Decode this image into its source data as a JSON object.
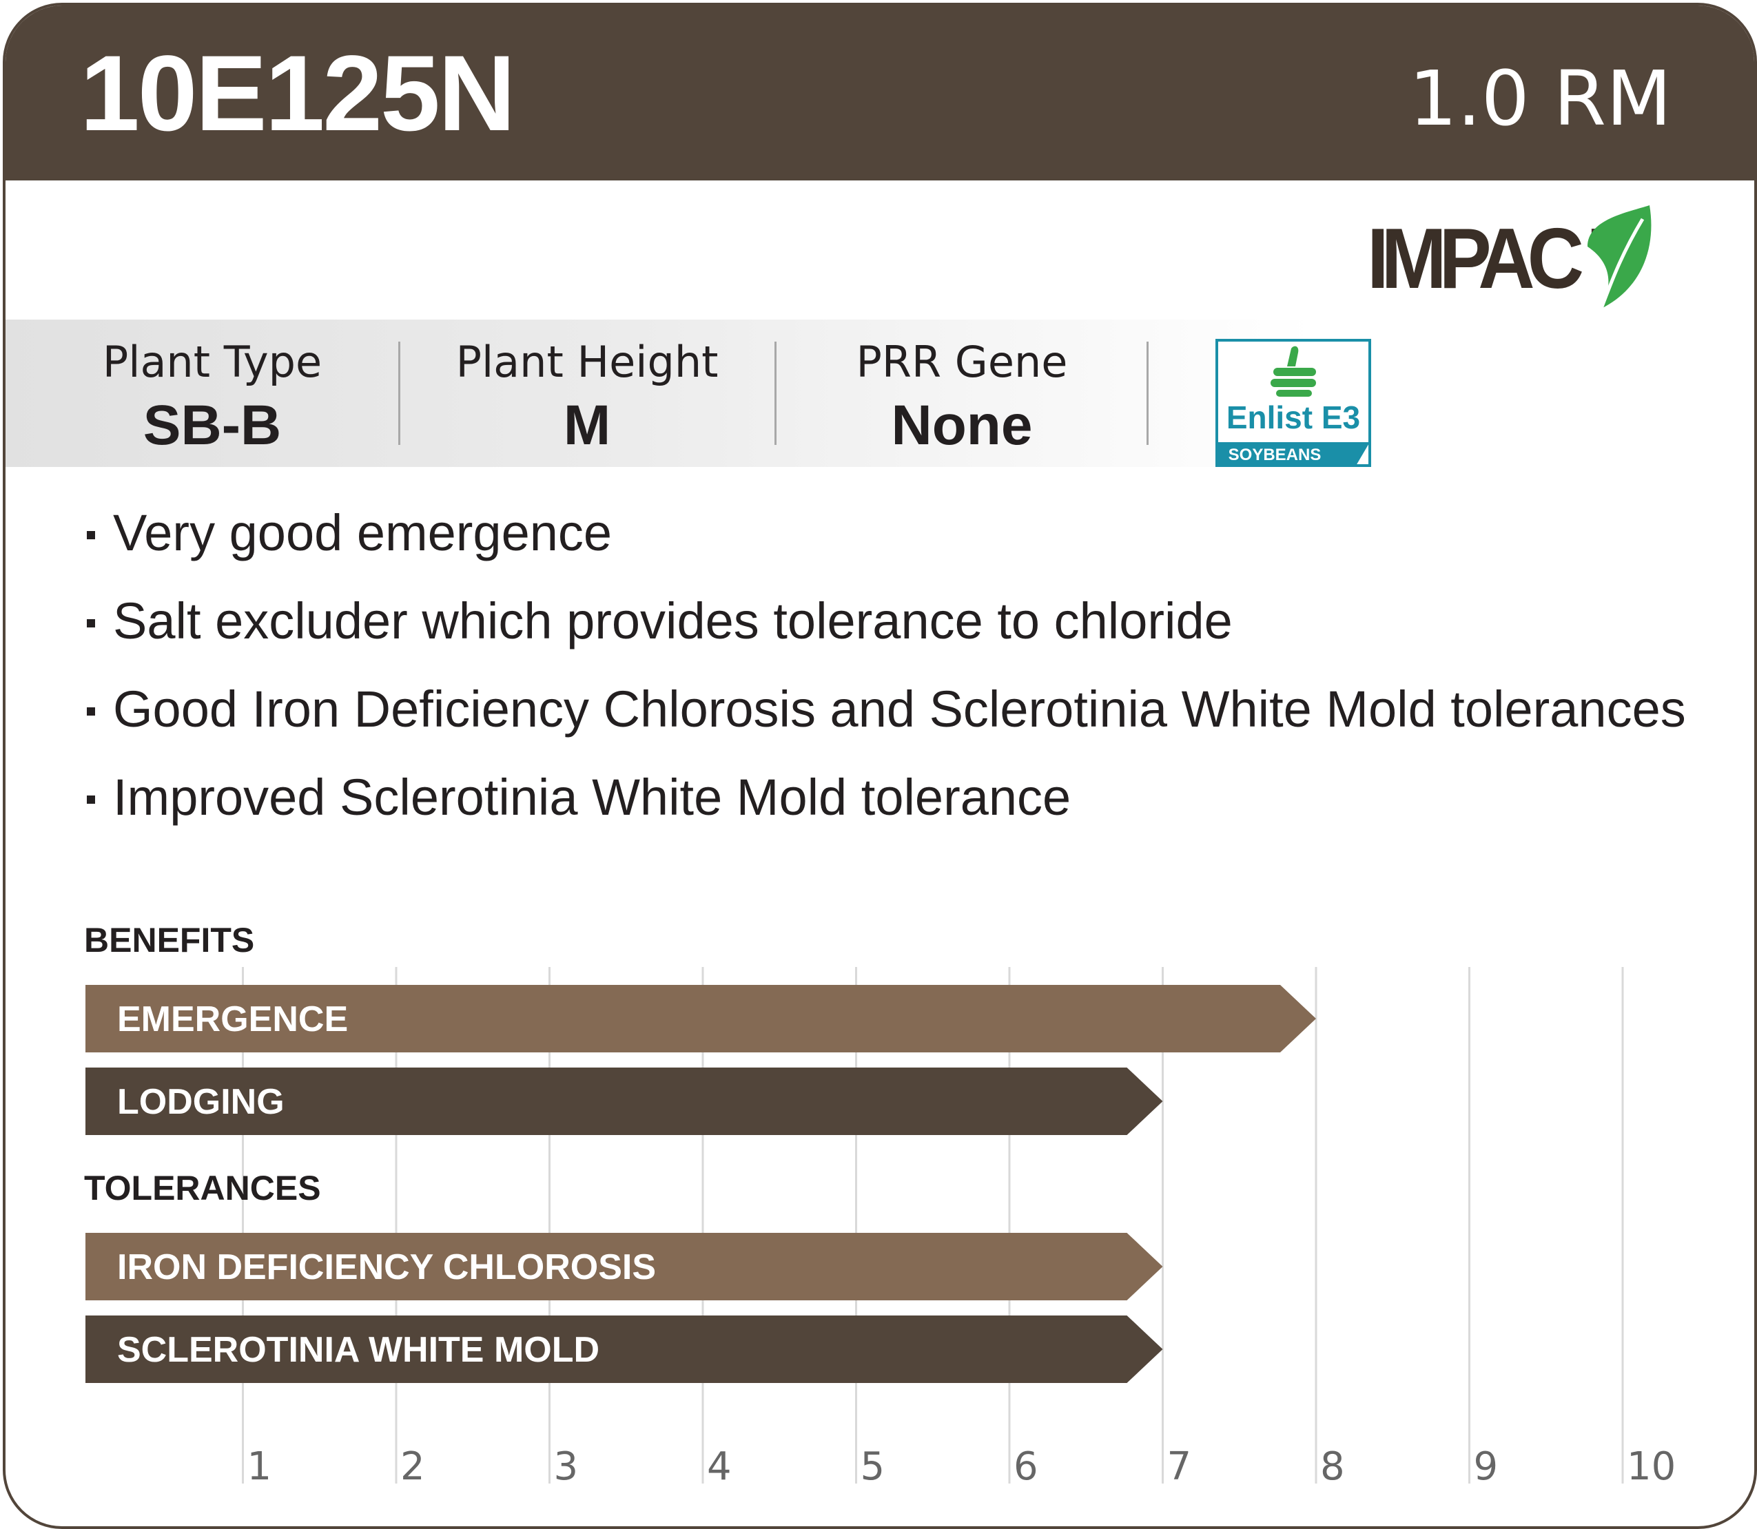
{
  "header": {
    "product_name": "10E125N",
    "relative_maturity": "1.0 RM"
  },
  "brand_logo": {
    "text": "IMPACT",
    "leaf_color": "#3aa84a"
  },
  "traits": [
    {
      "label": "Plant Type",
      "value": "SB-B"
    },
    {
      "label": "Plant Height",
      "value": "M"
    },
    {
      "label": "PRR Gene",
      "value": "None"
    }
  ],
  "trait_badge": {
    "name": "Enlist E3",
    "sub": "SOYBEANS",
    "icon": "thumbs-up-icon",
    "color": "#1a8fa8",
    "icon_color": "#3aa84a"
  },
  "bullets": [
    "Very good emergence",
    "Salt excluder which provides tolerance to chloride",
    "Good Iron Deficiency Chlorosis and Sclerotinia White Mold tolerances",
    "Improved Sclerotinia White Mold tolerance"
  ],
  "colors": {
    "header_bg": "#52453a",
    "bar_light": "#846a54",
    "bar_dark": "#52453a",
    "gridline": "#d9d9d9"
  },
  "chart_data": {
    "type": "bar",
    "orientation": "horizontal",
    "xlim": [
      0,
      10
    ],
    "xticks": [
      "1",
      "2",
      "3",
      "4",
      "5",
      "6",
      "7",
      "8",
      "9",
      "10"
    ],
    "grid": true,
    "groups": [
      {
        "title": "BENEFITS",
        "bars": [
          {
            "label": "EMERGENCE",
            "value": 8.0,
            "color": "#846a54"
          },
          {
            "label": "LODGING",
            "value": 7.0,
            "color": "#52453a"
          }
        ]
      },
      {
        "title": "TOLERANCES",
        "bars": [
          {
            "label": "IRON DEFICIENCY CHLOROSIS",
            "value": 7.0,
            "color": "#846a54"
          },
          {
            "label": "SCLEROTINIA WHITE MOLD",
            "value": 7.0,
            "color": "#52453a"
          }
        ]
      }
    ]
  }
}
